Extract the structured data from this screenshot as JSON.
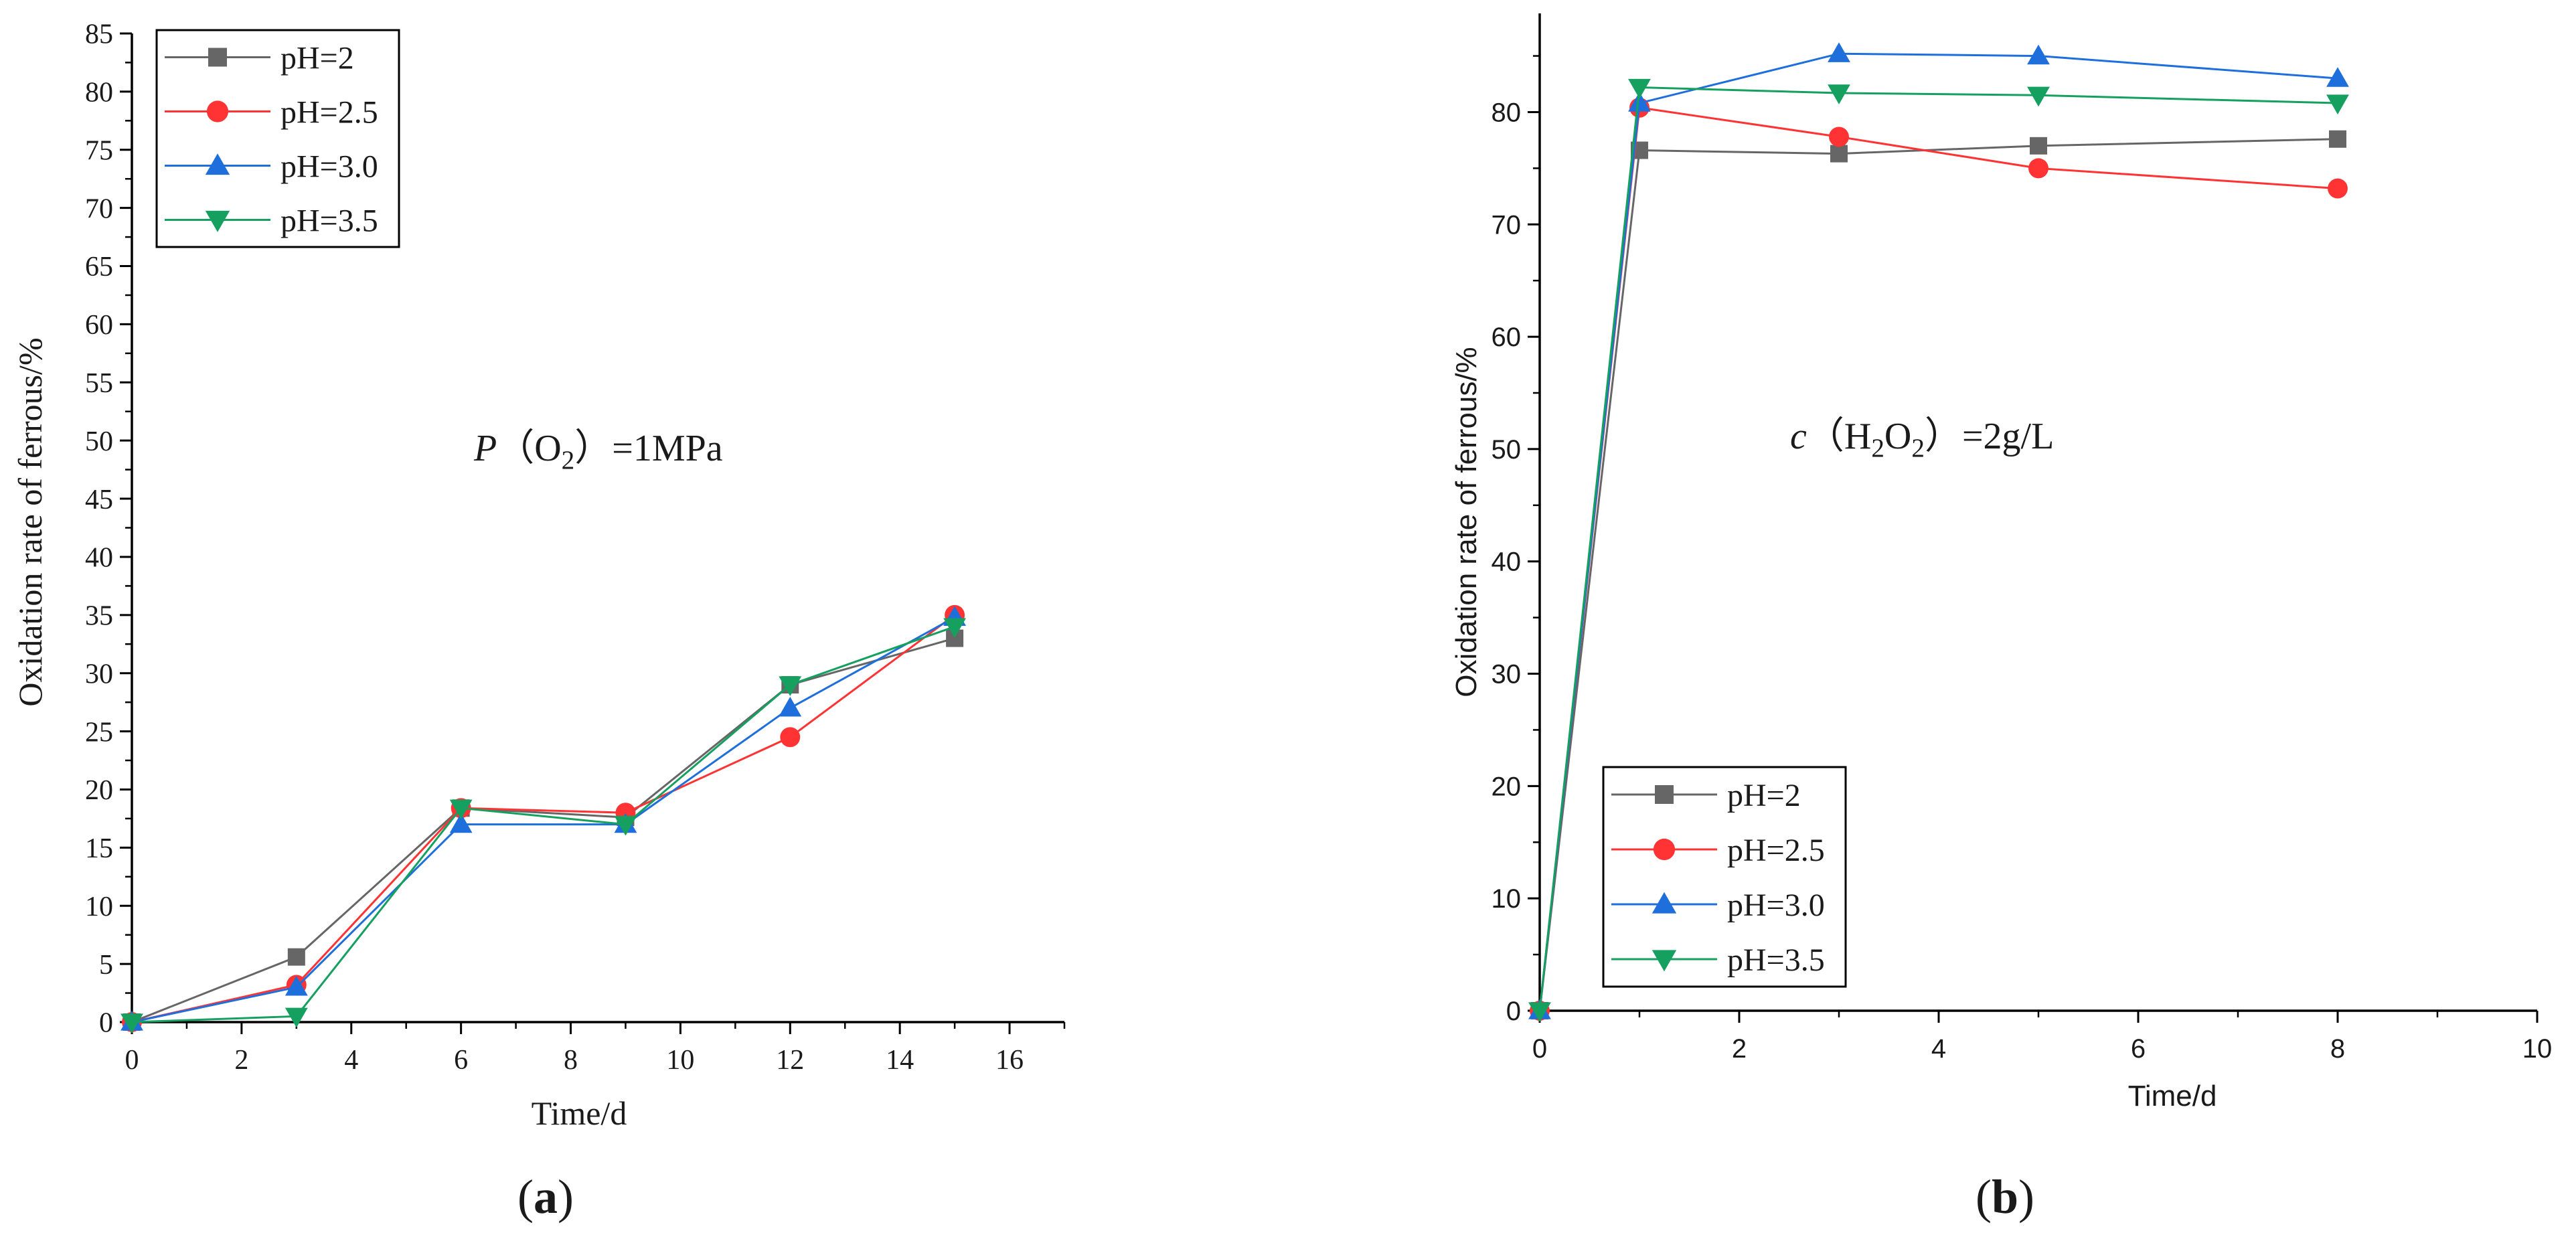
{
  "chart_data": [
    {
      "type": "line",
      "panel_label": "(a)",
      "annotation": {
        "prefix": "P",
        "open": "（O",
        "sub": "2",
        "close": "）=1MPa"
      },
      "xlabel": "Time/d",
      "ylabel": "Oxidation rate of ferrous/%",
      "xlim": [
        0,
        17
      ],
      "ylim": [
        0,
        85
      ],
      "x_ticks": [
        0,
        2,
        4,
        6,
        8,
        10,
        12,
        14,
        16
      ],
      "y_ticks": [
        0,
        5,
        10,
        15,
        20,
        25,
        30,
        35,
        40,
        45,
        50,
        55,
        60,
        65,
        70,
        75,
        80,
        85
      ],
      "legend_position": "top-left",
      "series": [
        {
          "name": "pH=2",
          "color": "#666666",
          "marker": "square",
          "x": [
            0,
            3,
            6,
            9,
            12,
            15
          ],
          "values": [
            0,
            5.6,
            18.4,
            17.6,
            29,
            33
          ]
        },
        {
          "name": "pH=2.5",
          "color": "#ff3333",
          "marker": "circle",
          "x": [
            0,
            3,
            6,
            9,
            12,
            15
          ],
          "values": [
            0,
            3.2,
            18.4,
            18,
            24.5,
            35
          ]
        },
        {
          "name": "pH=3.0",
          "color": "#1e6fdc",
          "marker": "triangle-up",
          "x": [
            0,
            3,
            6,
            9,
            12,
            15
          ],
          "values": [
            0,
            3,
            17,
            17,
            27,
            34.8
          ]
        },
        {
          "name": "pH=3.5",
          "color": "#15a05f",
          "marker": "triangle-down",
          "x": [
            0,
            3,
            6,
            9,
            12,
            15
          ],
          "values": [
            0,
            0.5,
            18.4,
            17,
            29,
            34
          ]
        }
      ]
    },
    {
      "type": "line",
      "panel_label": "(b)",
      "annotation": {
        "prefix": "c",
        "open": "（H",
        "sub1": "2",
        "mid": "O",
        "sub2": "2",
        "close": "）=2g/L"
      },
      "xlabel": "Time/d",
      "ylabel": "Oxidation rate of ferrous/%",
      "xlim": [
        0,
        10
      ],
      "ylim": [
        0,
        87
      ],
      "x_ticks": [
        0,
        2,
        4,
        6,
        8,
        10
      ],
      "y_ticks": [
        0,
        10,
        20,
        30,
        40,
        50,
        60,
        70,
        80
      ],
      "legend_position": "bottom-left",
      "series": [
        {
          "name": "pH=2",
          "color": "#666666",
          "marker": "square",
          "x": [
            0,
            1,
            3,
            5,
            8
          ],
          "values": [
            0,
            76.6,
            76.3,
            77,
            77.6
          ]
        },
        {
          "name": "pH=2.5",
          "color": "#ff3333",
          "marker": "circle",
          "x": [
            0,
            1,
            3,
            5,
            8
          ],
          "values": [
            0,
            80.4,
            77.8,
            75,
            73.2
          ]
        },
        {
          "name": "pH=3.0",
          "color": "#1e6fdc",
          "marker": "triangle-up",
          "x": [
            0,
            1,
            3,
            5,
            8
          ],
          "values": [
            0,
            80.8,
            85.2,
            85,
            83
          ]
        },
        {
          "name": "pH=3.5",
          "color": "#15a05f",
          "marker": "triangle-down",
          "x": [
            0,
            1,
            3,
            5,
            8
          ],
          "values": [
            0,
            82.2,
            81.7,
            81.5,
            80.8
          ]
        }
      ]
    }
  ]
}
